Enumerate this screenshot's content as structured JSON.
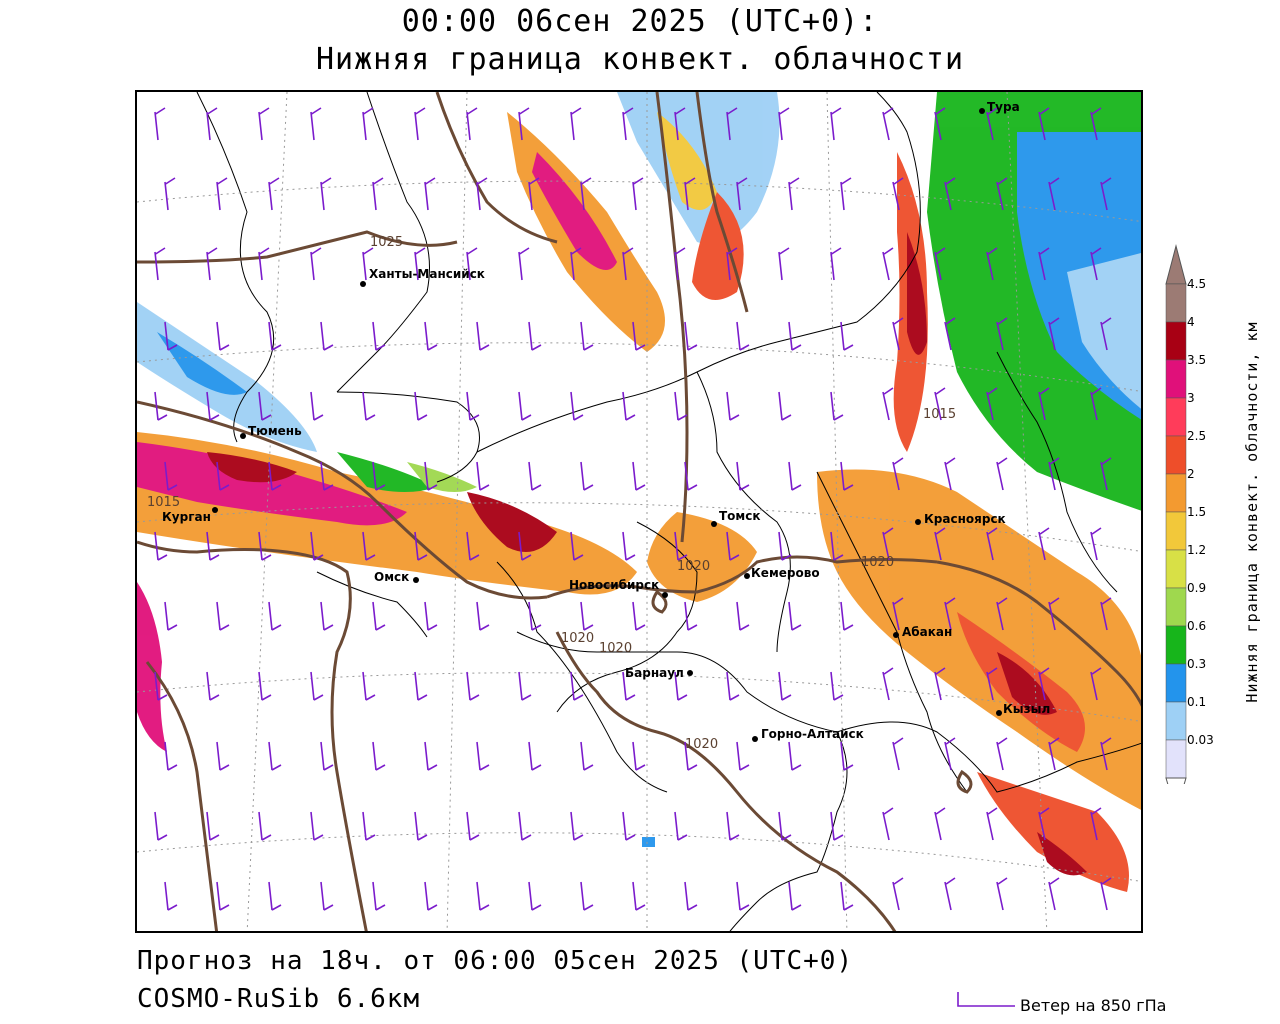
{
  "header": {
    "title_line1": "00:00 06сен 2025 (UTC+0):",
    "title_line2": "Нижняя граница конвект. облачности"
  },
  "footer": {
    "forecast": "Прогноз на 18ч. от 06:00 05сен 2025 (UTC+0)",
    "model": "COSMO-RuSib 6.6км",
    "wind_legend": "Ветер на 850 гПа"
  },
  "legend": {
    "title": "Нижняя граница конвект. облачности, км",
    "levels": [
      {
        "label": "4.5",
        "color": "#9c7b74"
      },
      {
        "label": "4",
        "color": "#a80014"
      },
      {
        "label": "3.5",
        "color": "#e0107a"
      },
      {
        "label": "3",
        "color": "#ff3c5a"
      },
      {
        "label": "2.5",
        "color": "#ee4e2a"
      },
      {
        "label": "2",
        "color": "#f39a30"
      },
      {
        "label": "1.5",
        "color": "#f2c83a"
      },
      {
        "label": "1.2",
        "color": "#d8e046"
      },
      {
        "label": "0.9",
        "color": "#9fd84e"
      },
      {
        "label": "0.6",
        "color": "#17b51b"
      },
      {
        "label": "0.3",
        "color": "#2394ec"
      },
      {
        "label": "0.1",
        "color": "#9ed0f5"
      },
      {
        "label": "0.03",
        "color": "#e2e2fb"
      }
    ]
  },
  "cities": [
    {
      "name": "Тура"
    },
    {
      "name": "Ханты-Мансийск"
    },
    {
      "name": "Тюмень"
    },
    {
      "name": "Курган"
    },
    {
      "name": "Омск"
    },
    {
      "name": "Новосибирск"
    },
    {
      "name": "Томск"
    },
    {
      "name": "Кемерово"
    },
    {
      "name": "Красноярск"
    },
    {
      "name": "Абакан"
    },
    {
      "name": "Барнаул"
    },
    {
      "name": "Горно-Алтайск"
    },
    {
      "name": "Кызыл"
    }
  ],
  "isobar_labels": [
    "1025",
    "1015",
    "1015",
    "1020",
    "1020",
    "1020",
    "1020",
    "1020"
  ],
  "colors": {
    "isobar": "#6b4a35",
    "wind_barb": "#7b1ccc",
    "border": "#000000"
  }
}
